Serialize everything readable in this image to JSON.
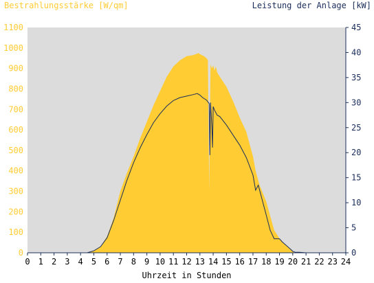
{
  "chart_data": {
    "type": "area",
    "left_axis_title": "Bestrahlungsstärke [W/qm]",
    "right_axis_title": "Leistung der Anlage [kW]",
    "xlabel": "Uhrzeit in Stunden",
    "xlim": [
      0,
      24
    ],
    "ylim_left": [
      0,
      1100
    ],
    "ylim_right": [
      0,
      45
    ],
    "x_ticks": [
      "0",
      "1",
      "2",
      "3",
      "4",
      "5",
      "6",
      "7",
      "8",
      "9",
      "10",
      "11",
      "12",
      "13",
      "14",
      "15",
      "16",
      "17",
      "18",
      "19",
      "20",
      "21",
      "22",
      "23",
      "24"
    ],
    "y_ticks_left": [
      "0",
      "100",
      "200",
      "300",
      "400",
      "500",
      "600",
      "700",
      "800",
      "900",
      "1000",
      "1100"
    ],
    "y_ticks_right": [
      "0",
      "5",
      "10",
      "15",
      "20",
      "25",
      "30",
      "35",
      "40",
      "45"
    ],
    "grid": false,
    "colors": {
      "plot_background": "#dcdcdc",
      "irradiance": "#ffcc33",
      "power": "#1a2d5a",
      "left_axis_text": "#ffcc33",
      "right_axis_text": "#1a2d5a",
      "axis_line": "#1a2d5a",
      "text": "#000000"
    },
    "series": [
      {
        "name": "Bestrahlungsstärke",
        "axis": "left",
        "style": "area",
        "x": [
          0,
          4.5,
          5,
          5.5,
          6,
          6.5,
          7,
          7.5,
          8,
          8.5,
          9,
          9.5,
          10,
          10.5,
          11,
          11.5,
          12,
          12.5,
          12.9,
          13,
          13.3,
          13.5,
          13.6,
          13.7,
          13.8,
          13.9,
          14.0,
          14.1,
          14.2,
          14.3,
          14.5,
          15,
          15.5,
          16,
          16.5,
          17,
          17.2,
          17.5,
          18,
          18.3,
          18.6,
          18.8,
          19,
          19.3,
          19.6,
          20,
          20.2,
          21,
          24
        ],
        "y": [
          0,
          0,
          10,
          30,
          80,
          170,
          300,
          390,
          470,
          560,
          640,
          720,
          790,
          860,
          910,
          940,
          960,
          965,
          975,
          970,
          960,
          950,
          940,
          300,
          920,
          900,
          915,
          890,
          910,
          880,
          860,
          810,
          740,
          660,
          590,
          470,
          400,
          330,
          250,
          180,
          110,
          90,
          70,
          50,
          30,
          5,
          0,
          0,
          0
        ]
      },
      {
        "name": "Leistung der Anlage",
        "axis": "right",
        "style": "line",
        "x": [
          0,
          4.5,
          5,
          5.5,
          6,
          6.5,
          7,
          7.5,
          8,
          8.5,
          9,
          9.5,
          10,
          10.5,
          11,
          11.5,
          12,
          12.5,
          12.8,
          13,
          13.2,
          13.5,
          13.7,
          13.75,
          13.8,
          13.9,
          13.95,
          14.0,
          14.1,
          14.3,
          14.5,
          15,
          15.5,
          16,
          16.5,
          17,
          17.2,
          17.4,
          17.7,
          18,
          18.3,
          18.6,
          19,
          19.2,
          19.5,
          19.8,
          20,
          20.2,
          20.5,
          21,
          24
        ],
        "y": [
          0,
          0,
          0.4,
          1.2,
          3,
          6.5,
          10.5,
          14.5,
          18,
          21,
          23.6,
          26,
          27.8,
          29.3,
          30.4,
          31,
          31.3,
          31.6,
          31.8,
          31.5,
          31.0,
          30.5,
          29.8,
          19.5,
          30.0,
          25,
          21,
          29.2,
          28.5,
          27.5,
          27.2,
          25.5,
          23.5,
          21.5,
          19,
          15.5,
          12.5,
          13.5,
          10.5,
          7.5,
          4.5,
          2.8,
          2.8,
          2.2,
          1.5,
          0.8,
          0.3,
          0.1,
          0.1,
          0,
          0
        ]
      }
    ]
  }
}
